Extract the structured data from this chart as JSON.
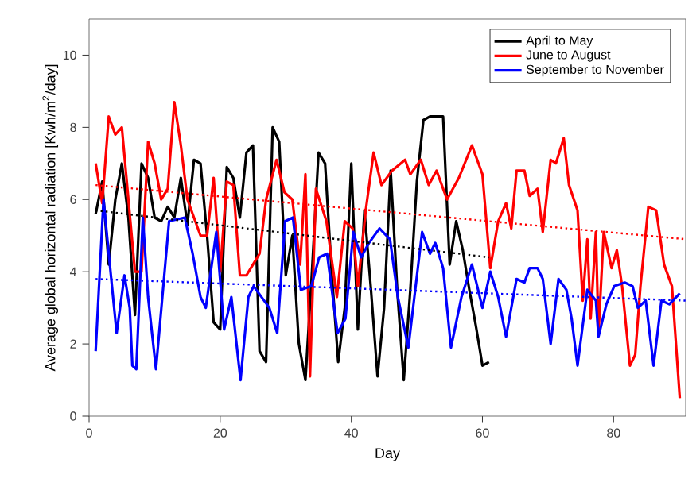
{
  "chart_data": {
    "type": "line",
    "xlabel": "Day",
    "ylabel": "Average global horizontal radiation [Kwh/m$^{2}$/day]",
    "xlim": [
      0,
      91
    ],
    "ylim": [
      0,
      11
    ],
    "xticks": [
      0,
      20,
      40,
      60,
      80
    ],
    "yticks": [
      0,
      2,
      4,
      6,
      8,
      10
    ],
    "grid": false,
    "legend": "top right",
    "series": [
      {
        "name": "April to May",
        "color": "#000000",
        "x": [
          1,
          2,
          3,
          4,
          5,
          6,
          7,
          8,
          9,
          10,
          11,
          12,
          13,
          14,
          15,
          16,
          17,
          18,
          19,
          20,
          21,
          22,
          23,
          24,
          25,
          26,
          27,
          28,
          29,
          30,
          31,
          32,
          33,
          34,
          35,
          36,
          37,
          38,
          39,
          40,
          41,
          42,
          43,
          44,
          45,
          46,
          47,
          48,
          49,
          50,
          51,
          52,
          53,
          54,
          55,
          56,
          57,
          58,
          59,
          60,
          61
        ],
        "values": [
          5.6,
          6.5,
          4.2,
          6.0,
          7.0,
          5.5,
          2.8,
          7.0,
          6.6,
          5.5,
          5.4,
          5.8,
          5.5,
          6.6,
          5.3,
          7.1,
          7.0,
          5.0,
          2.6,
          2.4,
          6.9,
          6.6,
          5.5,
          7.3,
          7.5,
          1.8,
          1.5,
          8.0,
          7.6,
          3.9,
          5.0,
          2.0,
          1.0,
          4.0,
          7.3,
          7.0,
          4.0,
          1.5,
          3.0,
          7.0,
          2.4,
          5.7,
          3.5,
          1.1,
          3.0,
          6.8,
          3.5,
          1.0,
          3.5,
          6.5,
          8.2,
          8.3,
          8.3,
          8.3,
          4.2,
          5.4,
          4.6,
          3.5,
          2.5,
          1.4,
          1.5
        ]
      },
      {
        "name": "June to August",
        "color": "#ff0000",
        "x": [
          1,
          2,
          3,
          4,
          5,
          6,
          7,
          8,
          9,
          10,
          11,
          12,
          13,
          14,
          15,
          16,
          17,
          18,
          19,
          20,
          21,
          22,
          23,
          24,
          25,
          26,
          27,
          28.6,
          29.8,
          31,
          32.2,
          33,
          33.7,
          34.6,
          36.2,
          37.8,
          39,
          40.2,
          41,
          42.2,
          43.4,
          44.6,
          46.2,
          48.2,
          49,
          50.6,
          51.8,
          53,
          54.6,
          56.4,
          58.4,
          60.0,
          61.2,
          62.4,
          63.6,
          64.4,
          65.2,
          66.4,
          67.2,
          68.4,
          69.2,
          70.4,
          71.2,
          72.4,
          73.2,
          74.5,
          75.3,
          76.0,
          76.5,
          77.3,
          77.7,
          78.5,
          79.7,
          80.5,
          81.3,
          82.5,
          83.3,
          84.1,
          85.3,
          86.5,
          87.7,
          88.9,
          90.1
        ],
        "values": [
          7.0,
          5.9,
          8.3,
          7.8,
          8.0,
          6.0,
          4.0,
          4.0,
          7.6,
          7.0,
          6.0,
          6.3,
          8.7,
          7.5,
          6.0,
          5.5,
          5.0,
          5.0,
          6.6,
          4.0,
          6.5,
          6.4,
          3.9,
          3.9,
          4.2,
          4.5,
          6.0,
          7.1,
          6.2,
          6.0,
          4.2,
          6.7,
          1.1,
          6.3,
          5.4,
          3.3,
          5.4,
          5.2,
          3.6,
          5.7,
          7.3,
          6.4,
          6.8,
          7.1,
          6.7,
          7.1,
          6.4,
          6.8,
          6.0,
          6.6,
          7.5,
          6.7,
          4.1,
          5.4,
          5.9,
          5.2,
          6.8,
          6.8,
          6.1,
          6.3,
          5.1,
          7.1,
          7.0,
          7.7,
          6.4,
          5.7,
          3.2,
          4.9,
          2.7,
          5.1,
          2.3,
          5.1,
          4.1,
          4.6,
          3.6,
          1.4,
          1.7,
          3.6,
          5.8,
          5.7,
          4.2,
          3.6,
          0.5
        ]
      },
      {
        "name": "September to November",
        "color": "#0000ff",
        "x": [
          1.0,
          2.2,
          3.0,
          4.2,
          5.4,
          6.2,
          6.6,
          7.2,
          8.2,
          9.0,
          10.2,
          12.2,
          14.6,
          15.8,
          17.0,
          17.8,
          19.4,
          20.6,
          21.7,
          23.1,
          24.3,
          25.1,
          27.5,
          28.7,
          29.9,
          31.1,
          32.3,
          33.9,
          35.1,
          36.3,
          37.9,
          39.1,
          40.3,
          41.5,
          42.7,
          44.3,
          45.9,
          47.1,
          48.7,
          50.8,
          52.0,
          52.8,
          54.0,
          55.2,
          56.8,
          58.4,
          60.0,
          61.2,
          62.4,
          63.6,
          65.2,
          66.4,
          67.2,
          68.4,
          69.2,
          70.4,
          71.6,
          72.8,
          73.6,
          74.5,
          76.0,
          77.3,
          77.7,
          78.9,
          80.1,
          81.7,
          82.9,
          83.7,
          84.9,
          86.1,
          87.3,
          88.5,
          90.1
        ],
        "values": [
          1.8,
          6.0,
          4.5,
          2.3,
          3.9,
          3.0,
          1.4,
          1.3,
          5.5,
          3.3,
          1.3,
          5.4,
          5.5,
          4.5,
          3.3,
          3.0,
          5.1,
          2.4,
          3.3,
          1.0,
          3.3,
          3.6,
          3.0,
          2.3,
          5.4,
          5.5,
          3.5,
          3.6,
          4.4,
          4.5,
          2.3,
          2.7,
          5.1,
          4.4,
          4.8,
          5.2,
          4.9,
          3.3,
          1.9,
          5.1,
          4.5,
          4.8,
          4.1,
          1.9,
          3.3,
          4.2,
          3.0,
          4.0,
          3.3,
          2.2,
          3.8,
          3.7,
          4.1,
          4.1,
          3.8,
          2.0,
          3.8,
          3.5,
          2.7,
          1.4,
          3.5,
          3.2,
          2.2,
          3.1,
          3.6,
          3.7,
          3.6,
          3.0,
          3.2,
          1.4,
          3.2,
          3.1,
          3.4
        ]
      },
      {
        "color": "#000000",
        "line_style": "dotted",
        "x": [
          1,
          61
        ],
        "values": [
          5.7,
          4.4
        ]
      },
      {
        "color": "#ff0000",
        "line_style": "dotted",
        "x": [
          1,
          91
        ],
        "values": [
          6.4,
          4.9
        ]
      },
      {
        "color": "#0000ff",
        "line_style": "dotted",
        "x": [
          1,
          91
        ],
        "values": [
          3.8,
          3.2
        ]
      }
    ]
  }
}
